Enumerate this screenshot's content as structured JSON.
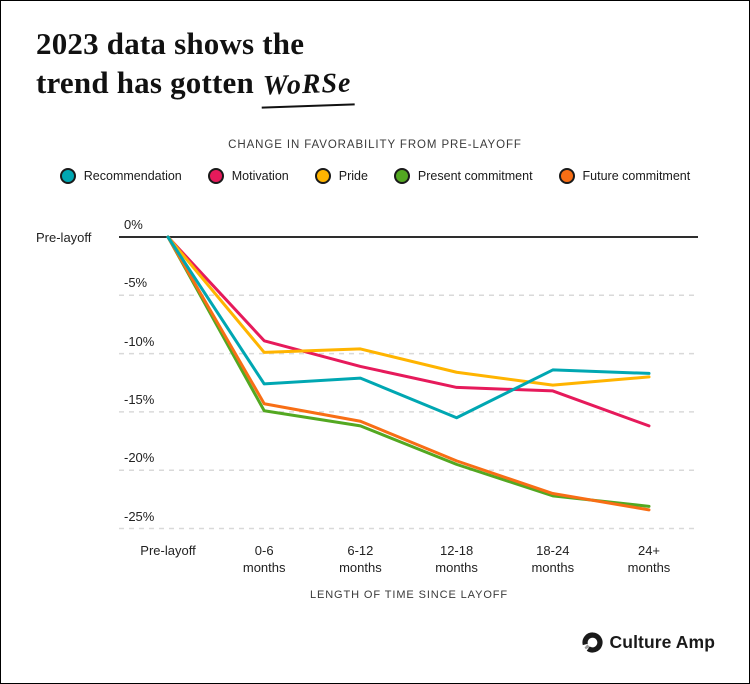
{
  "title": {
    "line1": "2023 data shows the",
    "line2": "trend has gotten",
    "highlight": "WoRSe"
  },
  "chart": {
    "title": "CHANGE IN FAVORABILITY FROM PRE-LAYOFF",
    "x_axis_title": "LENGTH OF TIME SINCE LAYOFF",
    "y_axis_side_label": "Pre-layoff",
    "y_tick_labels": [
      "0%",
      "-5%",
      "-10%",
      "-15%",
      "-20%",
      "-25%"
    ]
  },
  "chart_data": {
    "type": "line",
    "title": "CHANGE IN FAVORABILITY FROM PRE-LAYOFF",
    "xlabel": "LENGTH OF TIME SINCE LAYOFF",
    "ylabel": "Change in favorability (%)",
    "categories": [
      "Pre-layoff",
      "0-6 months",
      "6-12 months",
      "12-18 months",
      "18-24 months",
      "24+ months"
    ],
    "series": [
      {
        "name": "Recommendation",
        "color": "#00a7b2",
        "values": [
          0,
          -12.6,
          -12.1,
          -15.5,
          -11.4,
          -11.7
        ]
      },
      {
        "name": "Motivation",
        "color": "#e61a5b",
        "values": [
          0,
          -8.9,
          -11.1,
          -12.9,
          -13.2,
          -16.2
        ]
      },
      {
        "name": "Pride",
        "color": "#ffb400",
        "values": [
          0,
          -9.9,
          -9.6,
          -11.6,
          -12.7,
          -12.0
        ]
      },
      {
        "name": "Present commitment",
        "color": "#53a821",
        "values": [
          0,
          -14.9,
          -16.2,
          -19.5,
          -22.2,
          -23.1
        ]
      },
      {
        "name": "Future commitment",
        "color": "#f86e15",
        "values": [
          0,
          -14.3,
          -15.8,
          -19.2,
          -22.0,
          -23.4
        ]
      }
    ],
    "ylim": [
      -25,
      0
    ],
    "yticks": [
      0,
      -5,
      -10,
      -15,
      -20,
      -25
    ],
    "grid": "horizontal, dashed (0% line solid)",
    "legend_position": "top"
  },
  "brand": {
    "name": "Culture Amp"
  }
}
